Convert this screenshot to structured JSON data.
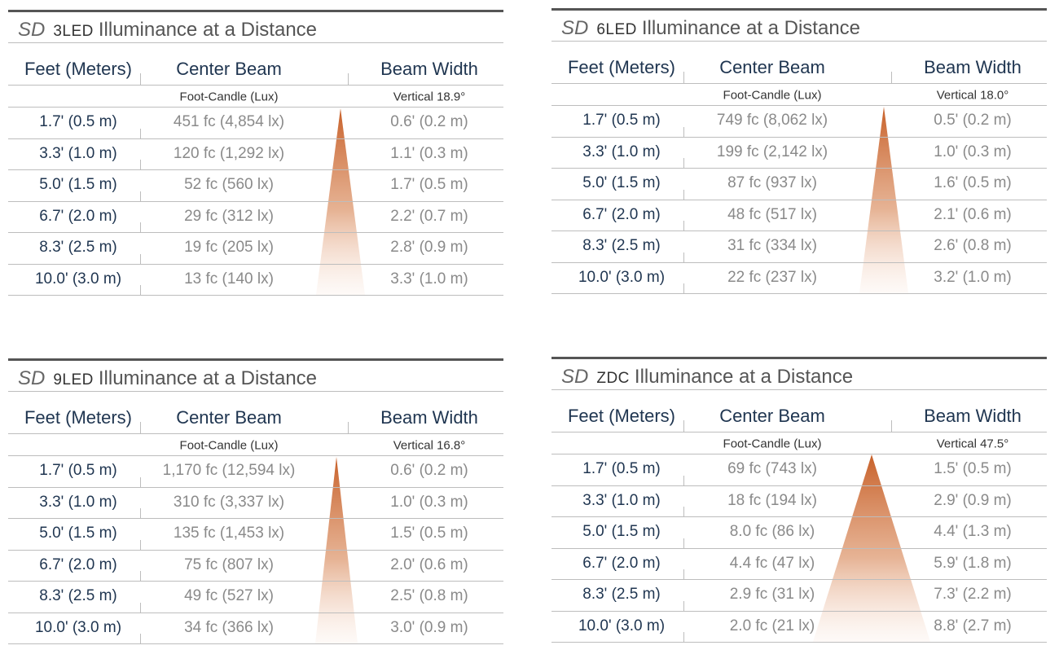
{
  "tables": [
    {
      "title": {
        "brand": "SD",
        "model": "3LED",
        "text": "Illuminance at a Distance"
      },
      "headers": [
        "Feet (Meters)",
        "Center Beam",
        "Beam Width"
      ],
      "subheaders": [
        "Foot-Candle (Lux)",
        "Vertical 18.9°"
      ],
      "rows": [
        [
          "1.7' (0.5 m)",
          "451 fc (4,854 lx)",
          "0.6' (0.2 m)"
        ],
        [
          "3.3' (1.0 m)",
          "120 fc (1,292 lx)",
          "1.1' (0.3 m)"
        ],
        [
          "5.0' (1.5 m)",
          "52 fc (560 lx)",
          "1.7' (0.5 m)"
        ],
        [
          "6.7' (2.0 m)",
          "29 fc (312 lx)",
          "2.2' (0.7 m)"
        ],
        [
          "8.3' (2.5 m)",
          "19 fc (205 lx)",
          "2.8' (0.9 m)"
        ],
        [
          "10.0' (3.0 m)",
          "13 fc (140 lx)",
          "3.3' (1.0 m)"
        ]
      ]
    },
    {
      "title": {
        "brand": "SD",
        "model": "6LED",
        "text": "Illuminance at a Distance"
      },
      "headers": [
        "Feet (Meters)",
        "Center Beam",
        "Beam Width"
      ],
      "subheaders": [
        "Foot-Candle (Lux)",
        "Vertical 18.0°"
      ],
      "rows": [
        [
          "1.7' (0.5 m)",
          "749 fc (8,062 lx)",
          "0.5' (0.2 m)"
        ],
        [
          "3.3' (1.0 m)",
          "199 fc (2,142 lx)",
          "1.0' (0.3 m)"
        ],
        [
          "5.0' (1.5 m)",
          "87 fc (937 lx)",
          "1.6' (0.5 m)"
        ],
        [
          "6.7' (2.0 m)",
          "48 fc (517 lx)",
          "2.1' (0.6 m)"
        ],
        [
          "8.3' (2.5 m)",
          "31 fc (334 lx)",
          "2.6' (0.8 m)"
        ],
        [
          "10.0' (3.0 m)",
          "22 fc (237 lx)",
          "3.2' (1.0 m)"
        ]
      ]
    },
    {
      "title": {
        "brand": "SD",
        "model": "9LED",
        "text": "Illuminance at a Distance"
      },
      "headers": [
        "Feet (Meters)",
        "Center Beam",
        "Beam Width"
      ],
      "subheaders": [
        "Foot-Candle (Lux)",
        "Vertical 16.8°"
      ],
      "rows": [
        [
          "1.7' (0.5 m)",
          "1,170 fc (12,594 lx)",
          "0.6' (0.2 m)"
        ],
        [
          "3.3' (1.0 m)",
          "310 fc (3,337 lx)",
          "1.0' (0.3 m)"
        ],
        [
          "5.0' (1.5 m)",
          "135 fc (1,453 lx)",
          "1.5' (0.5 m)"
        ],
        [
          "6.7' (2.0 m)",
          "75 fc (807 lx)",
          "2.0' (0.6 m)"
        ],
        [
          "8.3' (2.5 m)",
          "49 fc (527 lx)",
          "2.5' (0.8 m)"
        ],
        [
          "10.0' (3.0 m)",
          "34 fc (366 lx)",
          "3.0' (0.9 m)"
        ]
      ]
    },
    {
      "title": {
        "brand": "SD",
        "model": "ZDC",
        "text": "Illuminance at a Distance"
      },
      "headers": [
        "Feet (Meters)",
        "Center Beam",
        "Beam Width"
      ],
      "subheaders": [
        "Foot-Candle (Lux)",
        "Vertical 47.5°"
      ],
      "rows": [
        [
          "1.7' (0.5 m)",
          "69 fc (743 lx)",
          "1.5' (0.5 m)"
        ],
        [
          "3.3' (1.0 m)",
          "18 fc (194 lx)",
          "2.9' (0.9 m)"
        ],
        [
          "5.0' (1.5 m)",
          "8.0 fc (86 lx)",
          "4.4' (1.3 m)"
        ],
        [
          "6.7' (2.0 m)",
          "4.4 fc (47 lx)",
          "5.9' (1.8 m)"
        ],
        [
          "8.3' (2.5 m)",
          "2.9 fc (31 lx)",
          "7.3' (2.2 m)"
        ],
        [
          "10.0' (3.0 m)",
          "2.0 fc (21 lx)",
          "8.8' (2.7 m)"
        ]
      ]
    }
  ]
}
